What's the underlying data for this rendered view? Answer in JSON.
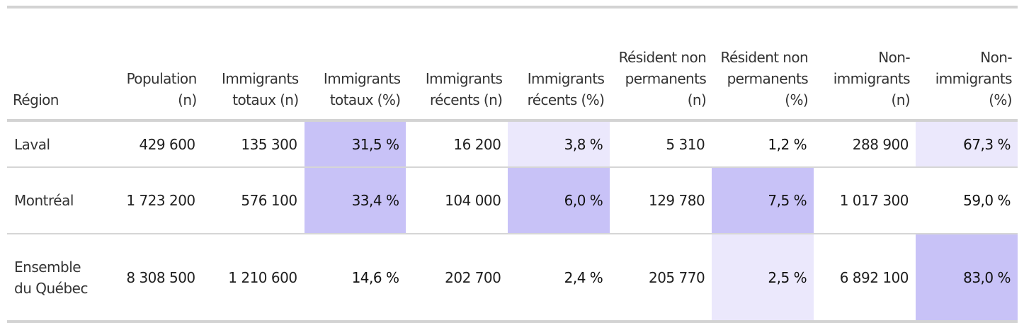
{
  "chart_data": {
    "type": "table",
    "columns": [
      "Région",
      "Population (n)",
      "Immigrants totaux (n)",
      "Immigrants totaux (%)",
      "Immigrants récents (n)",
      "Immigrants récents (%)",
      "Résident non permanents (n)",
      "Résident non permanents (%)",
      "Non-immigrants (n)",
      "Non-immigrants (%)"
    ],
    "rows": [
      {
        "cells": [
          "Laval",
          "429 600",
          "135 300",
          "31,5 %",
          "16 200",
          "3,8 %",
          "5 310",
          "1,2 %",
          "288 900",
          "67,3 %"
        ],
        "highlight": [
          "",
          "",
          "",
          "dark",
          "",
          "light",
          "",
          "",
          "",
          "light"
        ]
      },
      {
        "cells": [
          "Montréal",
          "1 723 200",
          "576 100",
          "33,4 %",
          "104 000",
          "6,0 %",
          "129 780",
          "7,5 %",
          "1 017 300",
          "59,0 %"
        ],
        "highlight": [
          "",
          "",
          "",
          "dark",
          "",
          "dark",
          "",
          "dark",
          "",
          ""
        ]
      },
      {
        "cells": [
          "Ensemble du Québec",
          "8 308 500",
          "1 210 600",
          "14,6 %",
          "202 700",
          "2,4 %",
          "205 770",
          "2,5 %",
          "6 892 100",
          "83,0 %"
        ],
        "highlight": [
          "",
          "",
          "",
          "",
          "",
          "",
          "",
          "light",
          "",
          "dark"
        ]
      }
    ],
    "highlight_colors": {
      "dark": "#c8c2f7",
      "light": "#ebe8fc"
    }
  }
}
